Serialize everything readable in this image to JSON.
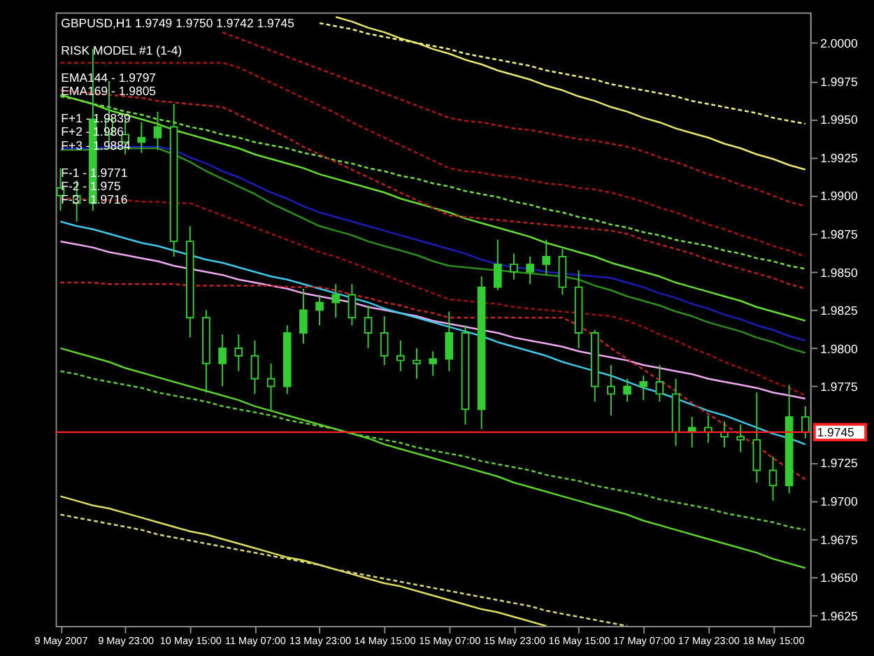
{
  "chart_data": {
    "type": "candlestick",
    "title": "GBPUSD,H1  1.9749 1.9750 1.9742 1.9745",
    "annotations": [
      "RISK MODEL #1 (1-4)",
      "EMA144 - 1.9797",
      "EMA169 - 1.9805",
      "F+1 - 1.9839",
      "F+2 - 1.986",
      "F+3 - 1.9884",
      "F-1 - 1.9771",
      "F-2 - 1.975",
      "F-3 - 1.9716"
    ],
    "categories": [
      "9 May 2007",
      null,
      null,
      null,
      "9 May 23:00",
      null,
      null,
      null,
      "10 May 15:00",
      null,
      null,
      null,
      "11 May 07:00",
      null,
      null,
      null,
      "13 May 23:00",
      null,
      null,
      null,
      "14 May 15:00",
      null,
      null,
      null,
      "15 May 07:00",
      null,
      null,
      null,
      "15 May 23:00",
      null,
      null,
      null,
      "16 May 15:00",
      null,
      null,
      null,
      "17 May 07:00",
      null,
      null,
      null,
      "17 May 23:00",
      null,
      null,
      null,
      "18 May 15:00",
      null,
      null
    ],
    "ohlc": [
      [
        1.9905,
        1.9918,
        1.989,
        1.99
      ],
      [
        1.99,
        1.991,
        1.9883,
        1.9895
      ],
      [
        1.9895,
        1.9996,
        1.989,
        1.995
      ],
      [
        1.995,
        1.9975,
        1.9935,
        1.994
      ],
      [
        1.994,
        1.995,
        1.9927,
        1.9935
      ],
      [
        1.9935,
        1.9948,
        1.9928,
        1.9938
      ],
      [
        1.9938,
        1.9955,
        1.993,
        1.9945
      ],
      [
        1.9945,
        1.996,
        1.986,
        1.987
      ],
      [
        1.987,
        1.988,
        1.9807,
        1.982
      ],
      [
        1.982,
        1.9825,
        1.9771,
        1.979
      ],
      [
        1.979,
        1.9809,
        1.9775,
        1.98
      ],
      [
        1.98,
        1.9809,
        1.9785,
        1.9795
      ],
      [
        1.9795,
        1.9805,
        1.977,
        1.978
      ],
      [
        1.978,
        1.979,
        1.9759,
        1.9775
      ],
      [
        1.9775,
        1.9815,
        1.977,
        1.981
      ],
      [
        1.981,
        1.9839,
        1.9803,
        1.9825
      ],
      [
        1.9825,
        1.9835,
        1.9815,
        1.983
      ],
      [
        1.983,
        1.9842,
        1.982,
        1.9835
      ],
      [
        1.9835,
        1.9842,
        1.9815,
        1.982
      ],
      [
        1.982,
        1.9828,
        1.98,
        1.981
      ],
      [
        1.981,
        1.9821,
        1.9789,
        1.9795
      ],
      [
        1.9795,
        1.9805,
        1.9785,
        1.9792
      ],
      [
        1.9792,
        1.98,
        1.978,
        1.979
      ],
      [
        1.979,
        1.9798,
        1.9782,
        1.9793
      ],
      [
        1.9793,
        1.9824,
        1.9785,
        1.981
      ],
      [
        1.981,
        1.9815,
        1.975,
        1.976
      ],
      [
        1.976,
        1.9847,
        1.9747,
        1.984
      ],
      [
        1.984,
        1.9871,
        1.9838,
        1.9855
      ],
      [
        1.9855,
        1.9862,
        1.9845,
        1.985
      ],
      [
        1.985,
        1.986,
        1.9842,
        1.9855
      ],
      [
        1.9855,
        1.9871,
        1.9848,
        1.986
      ],
      [
        1.986,
        1.9865,
        1.9835,
        1.984
      ],
      [
        1.984,
        1.9851,
        1.98,
        1.981
      ],
      [
        1.981,
        1.9812,
        1.9765,
        1.9775
      ],
      [
        1.9775,
        1.9789,
        1.9756,
        1.977
      ],
      [
        1.977,
        1.978,
        1.9765,
        1.9775
      ],
      [
        1.9775,
        1.9782,
        1.9766,
        1.9778
      ],
      [
        1.9778,
        1.9789,
        1.9765,
        1.977
      ],
      [
        1.977,
        1.978,
        1.9736,
        1.9745
      ],
      [
        1.9745,
        1.9755,
        1.9735,
        1.9748
      ],
      [
        1.9748,
        1.9756,
        1.9738,
        1.9745
      ],
      [
        1.9745,
        1.9752,
        1.9735,
        1.9742
      ],
      [
        1.9742,
        1.975,
        1.9732,
        1.974
      ],
      [
        1.974,
        1.9771,
        1.9712,
        1.972
      ],
      [
        1.972,
        1.9729,
        1.97,
        1.971
      ],
      [
        1.971,
        1.9776,
        1.9705,
        1.9755
      ],
      [
        1.9755,
        1.9762,
        1.9741,
        1.9745
      ]
    ],
    "color": "#33cc33",
    "series": [
      {
        "type": "line",
        "color": "#e8e870",
        "line_style": "solid",
        "values": [
          null,
          null,
          null,
          null,
          null,
          null,
          null,
          null,
          null,
          null,
          null,
          null,
          null,
          null,
          null,
          null,
          null,
          2.0017,
          2.0014,
          2.001,
          2.0007,
          2.0003,
          2.0,
          1.9996,
          1.9993,
          1.9989,
          1.9986,
          1.9982,
          1.9979,
          1.9976,
          1.9972,
          1.9969,
          1.9965,
          1.9962,
          1.9958,
          1.9955,
          1.9951,
          1.9948,
          1.9944,
          1.9941,
          1.9938,
          1.9934,
          1.9931,
          1.9927,
          1.9924,
          1.992,
          1.9917
        ]
      },
      {
        "type": "line",
        "color": "#f0f080",
        "line_style": "dashed",
        "values": [
          null,
          null,
          null,
          null,
          null,
          null,
          null,
          null,
          null,
          null,
          null,
          null,
          null,
          null,
          null,
          null,
          2.0013,
          2.0011,
          2.0009,
          2.0006,
          2.0004,
          2.0002,
          2.0,
          1.9998,
          1.9996,
          1.9993,
          1.9991,
          1.9989,
          1.9987,
          1.9985,
          1.9982,
          1.998,
          1.9978,
          1.9976,
          1.9973,
          1.9971,
          1.9969,
          1.9967,
          1.9965,
          1.9962,
          1.996,
          1.9958,
          1.9956,
          1.9954,
          1.9951,
          1.9949,
          1.9947
        ]
      },
      {
        "type": "line",
        "color": "#dcdc60",
        "line_style": "solid",
        "values": [
          1.9703,
          1.97,
          1.9697,
          1.9695,
          1.9692,
          1.9689,
          1.9686,
          1.9683,
          1.968,
          1.9678,
          1.9675,
          1.9672,
          1.9669,
          1.9666,
          1.9663,
          1.9661,
          1.9658,
          1.9655,
          1.9652,
          1.9649,
          1.9646,
          1.9644,
          1.9641,
          1.9638,
          1.9635,
          1.9632,
          1.9629,
          1.9627,
          1.9624,
          1.9621,
          1.9618,
          null,
          null,
          null,
          null,
          null,
          null,
          null,
          null,
          null,
          null,
          null,
          null,
          null,
          null,
          null,
          null
        ]
      },
      {
        "type": "line",
        "color": "#d8d878",
        "line_style": "dashed",
        "values": [
          1.9691,
          1.9689,
          1.9687,
          1.9685,
          1.9683,
          1.9681,
          1.9678,
          1.9676,
          1.9674,
          1.9672,
          1.967,
          1.9668,
          1.9666,
          1.9664,
          1.9662,
          1.966,
          1.9658,
          1.9655,
          1.9653,
          1.9651,
          1.9649,
          1.9647,
          1.9645,
          1.9643,
          1.9641,
          1.9639,
          1.9637,
          1.9635,
          1.9633,
          1.9631,
          1.9628,
          1.9626,
          1.9624,
          1.9622,
          1.962,
          1.9618,
          null,
          null,
          null,
          null,
          null,
          null,
          null,
          null,
          null,
          null,
          null
        ]
      },
      {
        "type": "line",
        "color": "#66dd33",
        "line_style": "solid",
        "values": [
          1.9966,
          1.9963,
          1.996,
          1.9956,
          1.9953,
          1.995,
          1.9947,
          1.9943,
          1.994,
          1.9937,
          1.9934,
          1.9931,
          1.9927,
          1.9924,
          1.9921,
          1.9918,
          1.9914,
          1.9911,
          1.9908,
          1.9905,
          1.9902,
          1.9898,
          1.9895,
          1.9892,
          1.9889,
          1.9885,
          1.9882,
          1.9879,
          1.9876,
          1.9873,
          1.9869,
          1.9866,
          1.9863,
          1.986,
          1.9856,
          1.9853,
          1.985,
          1.9847,
          1.9843,
          1.984,
          1.9837,
          1.9834,
          1.9831,
          1.9827,
          1.9824,
          1.9821,
          1.9818
        ]
      },
      {
        "type": "line",
        "color": "#70e040",
        "line_style": "dashed",
        "values": [
          1.9965,
          1.9963,
          1.996,
          1.9958,
          1.9955,
          1.9953,
          1.995,
          1.9948,
          1.9945,
          1.9943,
          1.994,
          1.9938,
          1.9935,
          1.9933,
          1.9931,
          1.9928,
          1.9926,
          1.9923,
          1.9921,
          1.9918,
          1.9916,
          1.9913,
          1.9911,
          1.9908,
          1.9906,
          1.9903,
          1.9901,
          1.9899,
          1.9896,
          1.9894,
          1.9891,
          1.9889,
          1.9886,
          1.9884,
          1.9881,
          1.9879,
          1.9876,
          1.9874,
          1.9871,
          1.9869,
          1.9867,
          1.9864,
          1.9862,
          1.9859,
          1.9857,
          1.9854,
          1.9852
        ]
      },
      {
        "type": "line",
        "color": "#5cd02c",
        "line_style": "solid",
        "values": [
          1.98,
          1.9797,
          1.9794,
          1.9791,
          1.9787,
          1.9784,
          1.9781,
          1.9778,
          1.9775,
          1.9772,
          1.9769,
          1.9766,
          1.9762,
          1.9759,
          1.9756,
          1.9753,
          1.975,
          1.9747,
          1.9744,
          1.9741,
          1.9737,
          1.9734,
          1.9731,
          1.9728,
          1.9725,
          1.9722,
          1.9719,
          1.9716,
          1.9712,
          1.9709,
          1.9706,
          1.9703,
          1.97,
          1.9697,
          1.9694,
          1.9691,
          1.9687,
          1.9684,
          1.9681,
          1.9678,
          1.9675,
          1.9672,
          1.9669,
          1.9666,
          1.9662,
          1.9659,
          1.9656
        ]
      },
      {
        "type": "line",
        "color": "#60c838",
        "line_style": "dashed",
        "values": [
          1.9785,
          1.9783,
          1.978,
          1.9778,
          1.9776,
          1.9774,
          1.9771,
          1.9769,
          1.9767,
          1.9765,
          1.9762,
          1.976,
          1.9758,
          1.9756,
          1.9753,
          1.9751,
          1.9749,
          1.9747,
          1.9744,
          1.9742,
          1.974,
          1.9738,
          1.9735,
          1.9733,
          1.9731,
          1.9729,
          1.9726,
          1.9724,
          1.9722,
          1.972,
          1.9717,
          1.9715,
          1.9713,
          1.971,
          1.9708,
          1.9706,
          1.9704,
          1.9701,
          1.9699,
          1.9697,
          1.9695,
          1.9692,
          1.969,
          1.9688,
          1.9686,
          1.9683,
          1.9681
        ]
      },
      {
        "type": "line",
        "color": "#2e8b1e",
        "line_style": "solid",
        "values": [
          1.993,
          1.993,
          1.993,
          1.9931,
          1.9931,
          1.9931,
          1.9931,
          1.9927,
          1.9922,
          1.9916,
          1.9911,
          1.9906,
          1.9901,
          1.9895,
          1.989,
          1.9885,
          1.988,
          1.9877,
          1.9874,
          1.987,
          1.9867,
          1.9864,
          1.9861,
          1.9857,
          1.9854,
          1.9853,
          1.9852,
          1.9851,
          1.985,
          1.9849,
          1.9848,
          1.9847,
          1.9845,
          1.9841,
          1.9838,
          1.9834,
          1.9831,
          1.9828,
          1.9824,
          1.9821,
          1.9817,
          1.9814,
          1.9811,
          1.9807,
          1.9804,
          1.98,
          1.9797
        ]
      },
      {
        "type": "line",
        "color": "#1c1cb4",
        "line_style": "solid",
        "values": [
          1.9931,
          1.9931,
          1.9931,
          1.9932,
          1.9932,
          1.9932,
          1.9932,
          1.993,
          1.9925,
          1.9921,
          1.9916,
          1.9912,
          1.9907,
          1.9902,
          1.9898,
          1.9893,
          1.9889,
          1.9886,
          1.9883,
          1.988,
          1.9877,
          1.9874,
          1.9871,
          1.9868,
          1.9865,
          1.9862,
          1.9858,
          1.9855,
          1.9853,
          1.9852,
          1.985,
          1.9849,
          1.9848,
          1.9847,
          1.9846,
          1.9843,
          1.984,
          1.9836,
          1.9833,
          1.9829,
          1.9826,
          1.9822,
          1.9819,
          1.9815,
          1.9812,
          1.9808,
          1.9805
        ]
      },
      {
        "type": "line",
        "color": "#f0a8f0",
        "line_style": "solid",
        "values": [
          1.987,
          1.9868,
          1.9866,
          1.9863,
          1.9861,
          1.9859,
          1.9857,
          1.9854,
          1.9852,
          1.985,
          1.9848,
          1.9845,
          1.9843,
          1.9841,
          1.9839,
          1.9836,
          1.9834,
          1.9832,
          1.983,
          1.9827,
          1.9825,
          1.9823,
          1.9821,
          1.9818,
          1.9816,
          1.9814,
          1.9812,
          1.981,
          1.9807,
          1.9805,
          1.9803,
          1.9801,
          1.9798,
          1.9796,
          1.9794,
          1.9792,
          1.9789,
          1.9787,
          1.9785,
          1.9783,
          1.978,
          1.9778,
          1.9776,
          1.9774,
          1.9771,
          1.9769,
          1.9767
        ]
      },
      {
        "type": "line",
        "color": "#40c8e8",
        "line_style": "solid",
        "values": [
          1.9883,
          1.988,
          1.9878,
          1.9875,
          1.9872,
          1.9869,
          1.9867,
          1.9864,
          1.9861,
          1.9858,
          1.9856,
          1.9853,
          1.985,
          1.9847,
          1.9845,
          1.9842,
          1.9839,
          1.9836,
          1.9833,
          1.983,
          1.9826,
          1.9823,
          1.982,
          1.9817,
          1.9814,
          1.9811,
          1.9808,
          1.9804,
          1.9801,
          1.9798,
          1.9795,
          1.9791,
          1.9788,
          1.9785,
          1.9782,
          1.9778,
          1.9774,
          1.9771,
          1.9767,
          1.9763,
          1.9759,
          1.9756,
          1.9752,
          1.9748,
          1.9744,
          1.9741,
          1.9737
        ]
      },
      {
        "type": "line",
        "color": "#b01818",
        "line_style": "dashed",
        "values": [
          null,
          null,
          null,
          null,
          null,
          null,
          null,
          null,
          null,
          null,
          2.0007,
          2.0003,
          1.9999,
          1.9995,
          1.9991,
          1.9987,
          1.9983,
          1.9979,
          1.9975,
          1.9971,
          1.9967,
          1.9963,
          1.9959,
          1.9955,
          1.9951,
          1.9949,
          1.9948,
          1.9946,
          1.9944,
          1.9943,
          1.9941,
          1.9939,
          1.9937,
          1.9936,
          1.9934,
          1.9932,
          1.9929,
          1.9925,
          1.9922,
          1.9918,
          1.9914,
          1.9911,
          1.9907,
          1.9904,
          1.99,
          1.9896,
          1.9893
        ]
      },
      {
        "type": "line",
        "color": "#a81414",
        "line_style": "dashed",
        "values": [
          1.9987,
          1.9987,
          1.9987,
          1.9987,
          1.9987,
          1.9987,
          1.9987,
          1.9987,
          1.9987,
          1.9987,
          1.9987,
          1.9984,
          1.9979,
          1.9974,
          1.9969,
          1.9964,
          1.9959,
          1.9954,
          1.9948,
          1.9943,
          1.9938,
          1.9933,
          1.9928,
          1.9923,
          1.9918,
          1.9916,
          1.9915,
          1.9913,
          1.9912,
          1.991,
          1.9908,
          1.9907,
          1.9905,
          1.9904,
          1.9902,
          1.9899,
          1.9896,
          1.9892,
          1.9889,
          1.9885,
          1.9881,
          1.9878,
          1.9874,
          1.9871,
          1.9867,
          1.9864,
          1.986
        ]
      },
      {
        "type": "line",
        "color": "#b82020",
        "line_style": "dashed",
        "values": [
          1.9969,
          1.9968,
          1.9967,
          1.9966,
          1.9965,
          1.9964,
          1.9962,
          1.9961,
          1.996,
          1.9959,
          1.9958,
          1.9953,
          1.9948,
          1.9943,
          1.9938,
          1.9932,
          1.9927,
          1.9922,
          1.9917,
          1.9912,
          1.9907,
          1.9902,
          1.9897,
          1.9892,
          1.9887,
          1.9886,
          1.9885,
          1.9884,
          1.9883,
          1.9882,
          1.9881,
          1.988,
          1.9879,
          1.9878,
          1.9877,
          1.9875,
          1.9871,
          1.9868,
          1.9865,
          1.9862,
          1.9858,
          1.9855,
          1.9852,
          1.9849,
          1.9846,
          1.9842,
          1.9839
        ]
      },
      {
        "type": "line",
        "color": "#a01010",
        "line_style": "dashed",
        "values": [
          1.9898,
          1.9898,
          1.9897,
          1.9897,
          1.9897,
          1.9896,
          1.9896,
          1.9895,
          1.9895,
          1.9891,
          1.9887,
          1.9883,
          1.9879,
          1.9875,
          1.9871,
          1.9867,
          1.9863,
          1.986,
          1.9856,
          1.9852,
          1.9848,
          1.9844,
          1.984,
          1.9836,
          1.9832,
          1.9831,
          1.983,
          1.9829,
          1.9827,
          1.9826,
          1.9825,
          1.9824,
          1.9823,
          1.9822,
          1.9821,
          1.9818,
          1.9814,
          1.9809,
          1.9805,
          1.98,
          1.9796,
          1.9791,
          1.9787,
          1.9783,
          1.9778,
          1.9774,
          1.9769
        ]
      },
      {
        "type": "line",
        "color": "#c02424",
        "line_style": "dashed",
        "values": [
          1.9843,
          1.9843,
          1.9843,
          1.9842,
          1.9842,
          1.9842,
          1.9842,
          1.9842,
          1.9841,
          1.9841,
          1.9841,
          1.9841,
          1.9841,
          1.9841,
          1.984,
          1.984,
          1.984,
          1.9838,
          1.9835,
          1.9833,
          1.983,
          1.9828,
          1.9825,
          1.9823,
          1.982,
          1.982,
          1.982,
          1.982,
          1.982,
          1.982,
          1.982,
          1.982,
          1.9815,
          1.9808,
          1.98,
          1.9793,
          1.9786,
          1.9779,
          1.9772,
          1.9764,
          1.9757,
          1.975,
          1.9743,
          1.9736,
          1.9728,
          1.9721,
          1.9714
        ]
      }
    ],
    "ref_lines": [
      {
        "axis": "y",
        "value": 1.9745,
        "label": "1.9745",
        "color": "#ff2020"
      }
    ],
    "ylim": [
      1.9618,
      2.002
    ],
    "yticks": [
      {
        "value": 1.9625,
        "label": "1.9625"
      },
      {
        "value": 1.965,
        "label": "1.9650"
      },
      {
        "value": 1.9675,
        "label": "1.9675"
      },
      {
        "value": 1.97,
        "label": "1.9700"
      },
      {
        "value": 1.9725,
        "label": "1.9725"
      },
      {
        "value": 1.9775,
        "label": "1.9775"
      },
      {
        "value": 1.98,
        "label": "1.9800"
      },
      {
        "value": 1.9825,
        "label": "1.9825"
      },
      {
        "value": 1.985,
        "label": "1.9850"
      },
      {
        "value": 1.9875,
        "label": "1.9875"
      },
      {
        "value": 1.99,
        "label": "1.9900"
      },
      {
        "value": 1.9925,
        "label": "1.9925"
      },
      {
        "value": 1.995,
        "label": "1.9950"
      },
      {
        "value": 1.9975,
        "label": "1.9975"
      },
      {
        "value": 2.0,
        "label": "2.0000"
      }
    ],
    "grid": false
  }
}
